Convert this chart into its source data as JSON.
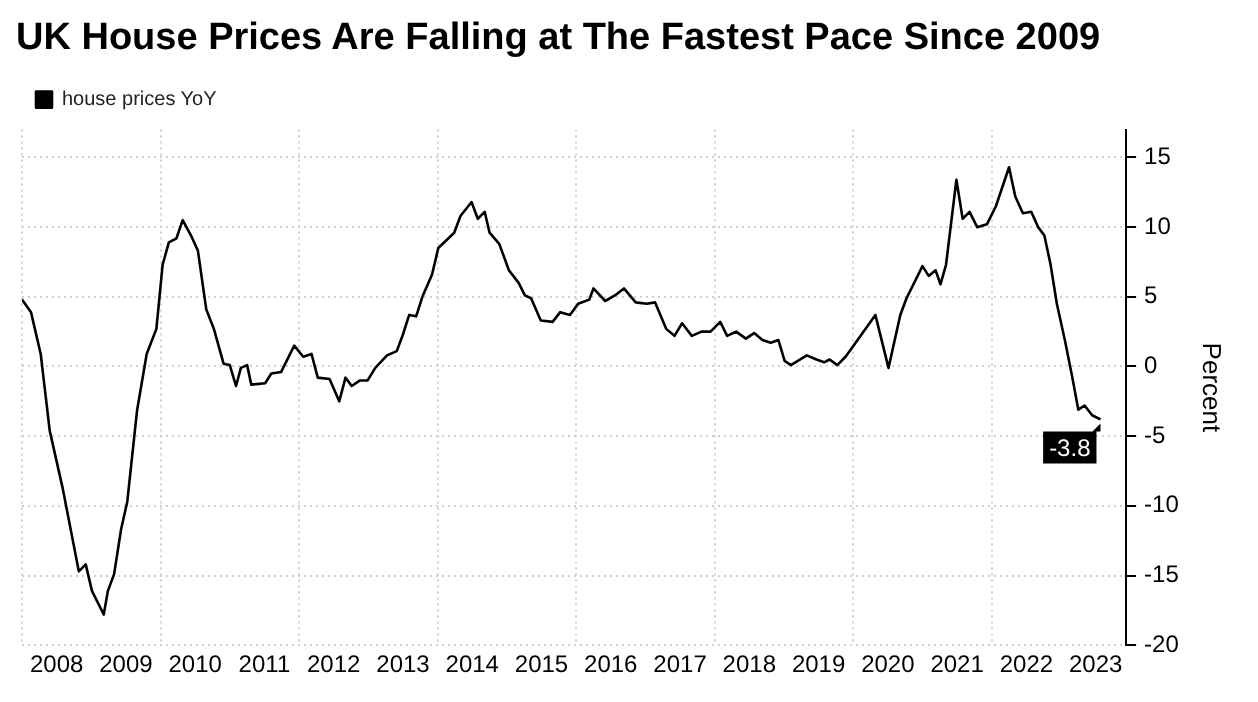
{
  "chart_data": {
    "type": "line",
    "title": "UK House Prices Are Falling at The Fastest Pace Since 2009",
    "ylabel": "Percent",
    "x": [
      2008.0,
      2008.13,
      2008.27,
      2008.4,
      2008.59,
      2008.82,
      2008.92,
      2009.01,
      2009.18,
      2009.24,
      2009.33,
      2009.43,
      2009.52,
      2009.66,
      2009.8,
      2009.94,
      2010.03,
      2010.12,
      2010.23,
      2010.32,
      2010.44,
      2010.54,
      2010.66,
      2010.77,
      2010.91,
      2011.0,
      2011.09,
      2011.16,
      2011.25,
      2011.31,
      2011.51,
      2011.6,
      2011.74,
      2011.93,
      2012.06,
      2012.18,
      2012.27,
      2012.44,
      2012.58,
      2012.67,
      2012.76,
      2012.88,
      2012.99,
      2013.1,
      2013.27,
      2013.41,
      2013.5,
      2013.59,
      2013.69,
      2013.78,
      2013.92,
      2014.01,
      2014.24,
      2014.33,
      2014.49,
      2014.58,
      2014.68,
      2014.75,
      2014.89,
      2015.03,
      2015.17,
      2015.26,
      2015.35,
      2015.49,
      2015.66,
      2015.77,
      2015.91,
      2016.03,
      2016.19,
      2016.25,
      2016.42,
      2016.56,
      2016.69,
      2016.86,
      2017.02,
      2017.14,
      2017.3,
      2017.42,
      2017.53,
      2017.67,
      2017.81,
      2017.94,
      2018.08,
      2018.18,
      2018.31,
      2018.45,
      2018.57,
      2018.69,
      2018.81,
      2018.92,
      2019.01,
      2019.1,
      2019.33,
      2019.47,
      2019.58,
      2019.66,
      2019.77,
      2019.89,
      2020.12,
      2020.32,
      2020.51,
      2020.68,
      2020.77,
      2021.0,
      2021.09,
      2021.19,
      2021.26,
      2021.34,
      2021.49,
      2021.58,
      2021.68,
      2021.79,
      2021.93,
      2022.06,
      2022.25,
      2022.34,
      2022.45,
      2022.57,
      2022.67,
      2022.76,
      2022.85,
      2022.94,
      2023.06,
      2023.16,
      2023.25,
      2023.34,
      2023.45,
      2023.57
    ],
    "series": [
      {
        "name": "house prices YoY",
        "color": "#000000",
        "values": [
          4.8,
          3.9,
          0.9,
          -4.6,
          -8.8,
          -14.7,
          -14.2,
          -16.1,
          -17.8,
          -16.1,
          -14.9,
          -11.7,
          -9.7,
          -3.2,
          0.9,
          2.7,
          7.3,
          8.9,
          9.2,
          10.5,
          9.4,
          8.3,
          4.1,
          2.7,
          0.2,
          0.1,
          -1.4,
          -0.1,
          0.1,
          -1.3,
          -1.2,
          -0.5,
          -0.4,
          1.5,
          0.7,
          0.9,
          -0.8,
          -0.9,
          -2.5,
          -0.8,
          -1.4,
          -1.0,
          -1.0,
          -0.1,
          0.8,
          1.1,
          2.3,
          3.7,
          3.6,
          5.0,
          6.6,
          8.5,
          9.6,
          10.8,
          11.8,
          10.6,
          11.1,
          9.6,
          8.8,
          6.9,
          6.0,
          5.1,
          4.9,
          3.3,
          3.2,
          3.9,
          3.7,
          4.5,
          4.8,
          5.6,
          4.7,
          5.1,
          5.6,
          4.6,
          4.5,
          4.6,
          2.7,
          2.2,
          3.1,
          2.2,
          2.5,
          2.5,
          3.2,
          2.2,
          2.5,
          2.0,
          2.4,
          1.9,
          1.7,
          1.9,
          0.4,
          0.1,
          0.8,
          0.5,
          0.3,
          0.5,
          0.1,
          0.7,
          2.3,
          3.7,
          -0.1,
          3.7,
          4.9,
          7.2,
          6.5,
          6.9,
          5.9,
          7.3,
          13.4,
          10.6,
          11.1,
          10.0,
          10.2,
          11.5,
          14.3,
          12.2,
          11.0,
          11.1,
          10.0,
          9.4,
          7.3,
          4.5,
          1.8,
          -0.7,
          -3.1,
          -2.8,
          -3.5,
          -3.8
        ]
      }
    ],
    "xlim": [
      2008,
      2023.94
    ],
    "xticks": [
      {
        "value": 2008,
        "label": null
      },
      {
        "value": 2008.5,
        "label": "2008"
      },
      {
        "value": 2009.5,
        "label": "2009"
      },
      {
        "value": 2010,
        "label": null
      },
      {
        "value": 2010.5,
        "label": "2010"
      },
      {
        "value": 2011.5,
        "label": "2011"
      },
      {
        "value": 2012,
        "label": null
      },
      {
        "value": 2012.5,
        "label": "2012"
      },
      {
        "value": 2013.5,
        "label": "2013"
      },
      {
        "value": 2014,
        "label": null
      },
      {
        "value": 2014.5,
        "label": "2014"
      },
      {
        "value": 2015.5,
        "label": "2015"
      },
      {
        "value": 2016,
        "label": null
      },
      {
        "value": 2016.5,
        "label": "2016"
      },
      {
        "value": 2017.5,
        "label": "2017"
      },
      {
        "value": 2018,
        "label": null
      },
      {
        "value": 2018.5,
        "label": "2018"
      },
      {
        "value": 2019.5,
        "label": "2019"
      },
      {
        "value": 2020,
        "label": null
      },
      {
        "value": 2020.5,
        "label": "2020"
      },
      {
        "value": 2021.5,
        "label": "2021"
      },
      {
        "value": 2022,
        "label": null
      },
      {
        "value": 2022.5,
        "label": "2022"
      },
      {
        "value": 2023.5,
        "label": "2023"
      }
    ],
    "ylim": [
      -20,
      17
    ],
    "yticks": [
      15,
      10,
      5,
      0,
      -5,
      -10,
      -15,
      -20
    ],
    "grid": true,
    "legend": "top left",
    "annotations": [
      {
        "text": "-3.8",
        "x": 2023.57,
        "y": -3.8
      }
    ]
  }
}
